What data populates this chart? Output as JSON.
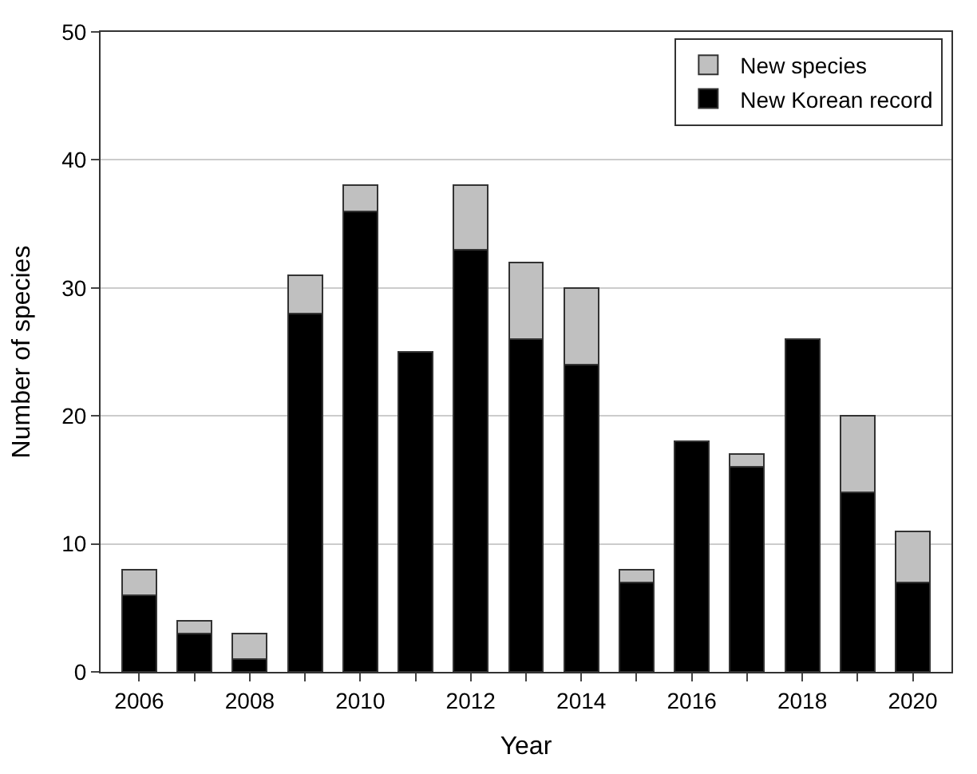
{
  "chart_data": {
    "type": "bar",
    "stacked": true,
    "xlabel": "Year",
    "ylabel": "Number of species",
    "x": [
      2006,
      2007,
      2008,
      2009,
      2010,
      2011,
      2012,
      2013,
      2014,
      2015,
      2016,
      2017,
      2018,
      2019,
      2020
    ],
    "series": [
      {
        "name": "New Korean record",
        "color": "#000000",
        "values": [
          6,
          3,
          1,
          28,
          36,
          25,
          33,
          26,
          24,
          7,
          18,
          16,
          26,
          14,
          7
        ]
      },
      {
        "name": "New species",
        "color": "#c0c0c0",
        "values": [
          2,
          1,
          2,
          3,
          2,
          0,
          5,
          6,
          6,
          1,
          0,
          1,
          0,
          6,
          4
        ]
      }
    ],
    "xlim": [
      2005.3,
      2020.7
    ],
    "xticks": [
      2006,
      {
        "value": 2007,
        "label": null
      },
      2008,
      {
        "value": 2009,
        "label": null
      },
      2010,
      {
        "value": 2011,
        "label": null
      },
      2012,
      {
        "value": 2013,
        "label": null
      },
      2014,
      {
        "value": 2015,
        "label": null
      },
      2016,
      {
        "value": 2017,
        "label": null
      },
      2018,
      {
        "value": 2019,
        "label": null
      },
      2020
    ],
    "ylim": [
      0,
      50
    ],
    "yticks": [
      0,
      10,
      20,
      30,
      40,
      50
    ],
    "grid": "y",
    "legend": "top right"
  }
}
